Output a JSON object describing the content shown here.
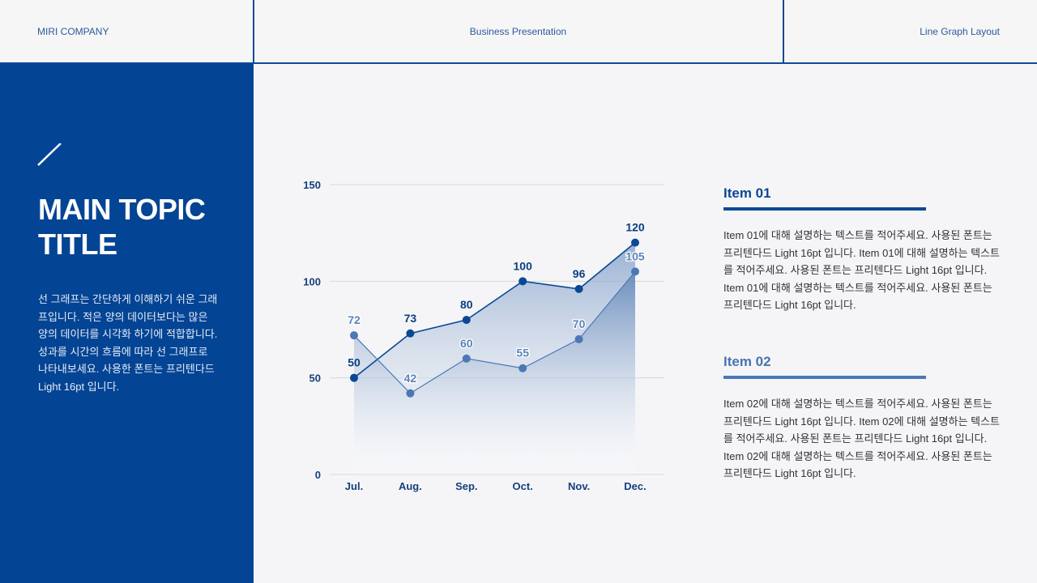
{
  "header": {
    "company": "MIRI COMPANY",
    "presentation": "Business Presentation",
    "layout": "Line Graph Layout"
  },
  "sidebar": {
    "slash_icon": "slash-icon",
    "title_line1": "MAIN TOPIC",
    "title_line2": "TITLE",
    "description": "선 그래프는 간단하게 이해하기 쉬운 그래프입니다. 적은 양의 데이터보다는 많은 양의 데이터를 시각화 하기에 적합합니다. 성과를 시간의 흐름에 따라 선 그래프로 나타내보세요. 사용한 폰트는 프리텐다드 Light 16pt 입니다."
  },
  "items": [
    {
      "title": "Item 01",
      "text": "Item 01에 대해 설명하는 텍스트를 적어주세요. 사용된 폰트는 프리텐다드 Light 16pt 입니다. Item 01에 대해 설명하는 텍스트를 적어주세요. 사용된 폰트는 프리텐다드 Light 16pt 입니다. Item 01에 대해 설명하는 텍스트를 적어주세요. 사용된 폰트는 프리텐다드 Light 16pt 입니다."
    },
    {
      "title": "Item 02",
      "text": "Item 02에 대해 설명하는 텍스트를 적어주세요. 사용된 폰트는 프리텐다드 Light 16pt 입니다. Item 02에 대해 설명하는 텍스트를 적어주세요. 사용된 폰트는 프리텐다드 Light 16pt 입니다. Item 02에 대해 설명하는 텍스트를 적어주세요. 사용된 폰트는 프리텐다드 Light 16pt 입니다."
    }
  ],
  "colors": {
    "primary": "#044494",
    "series1": "#0b4893",
    "series2": "#4b78b5",
    "background": "#f5f5f8"
  },
  "chart_data": {
    "type": "area",
    "title": "",
    "xlabel": "",
    "ylabel": "",
    "categories": [
      "Jul.",
      "Aug.",
      "Sep.",
      "Oct.",
      "Nov.",
      "Dec."
    ],
    "series": [
      {
        "name": "Item 01",
        "values": [
          50,
          73,
          80,
          100,
          96,
          120
        ],
        "color": "#0b4893"
      },
      {
        "name": "Item 02",
        "values": [
          72,
          42,
          60,
          55,
          70,
          105
        ],
        "color": "#4b78b5"
      }
    ],
    "yticks": [
      0,
      50,
      100,
      150
    ],
    "ylim": [
      0,
      150
    ],
    "grid": true,
    "legend": "none",
    "data_labels": true
  }
}
